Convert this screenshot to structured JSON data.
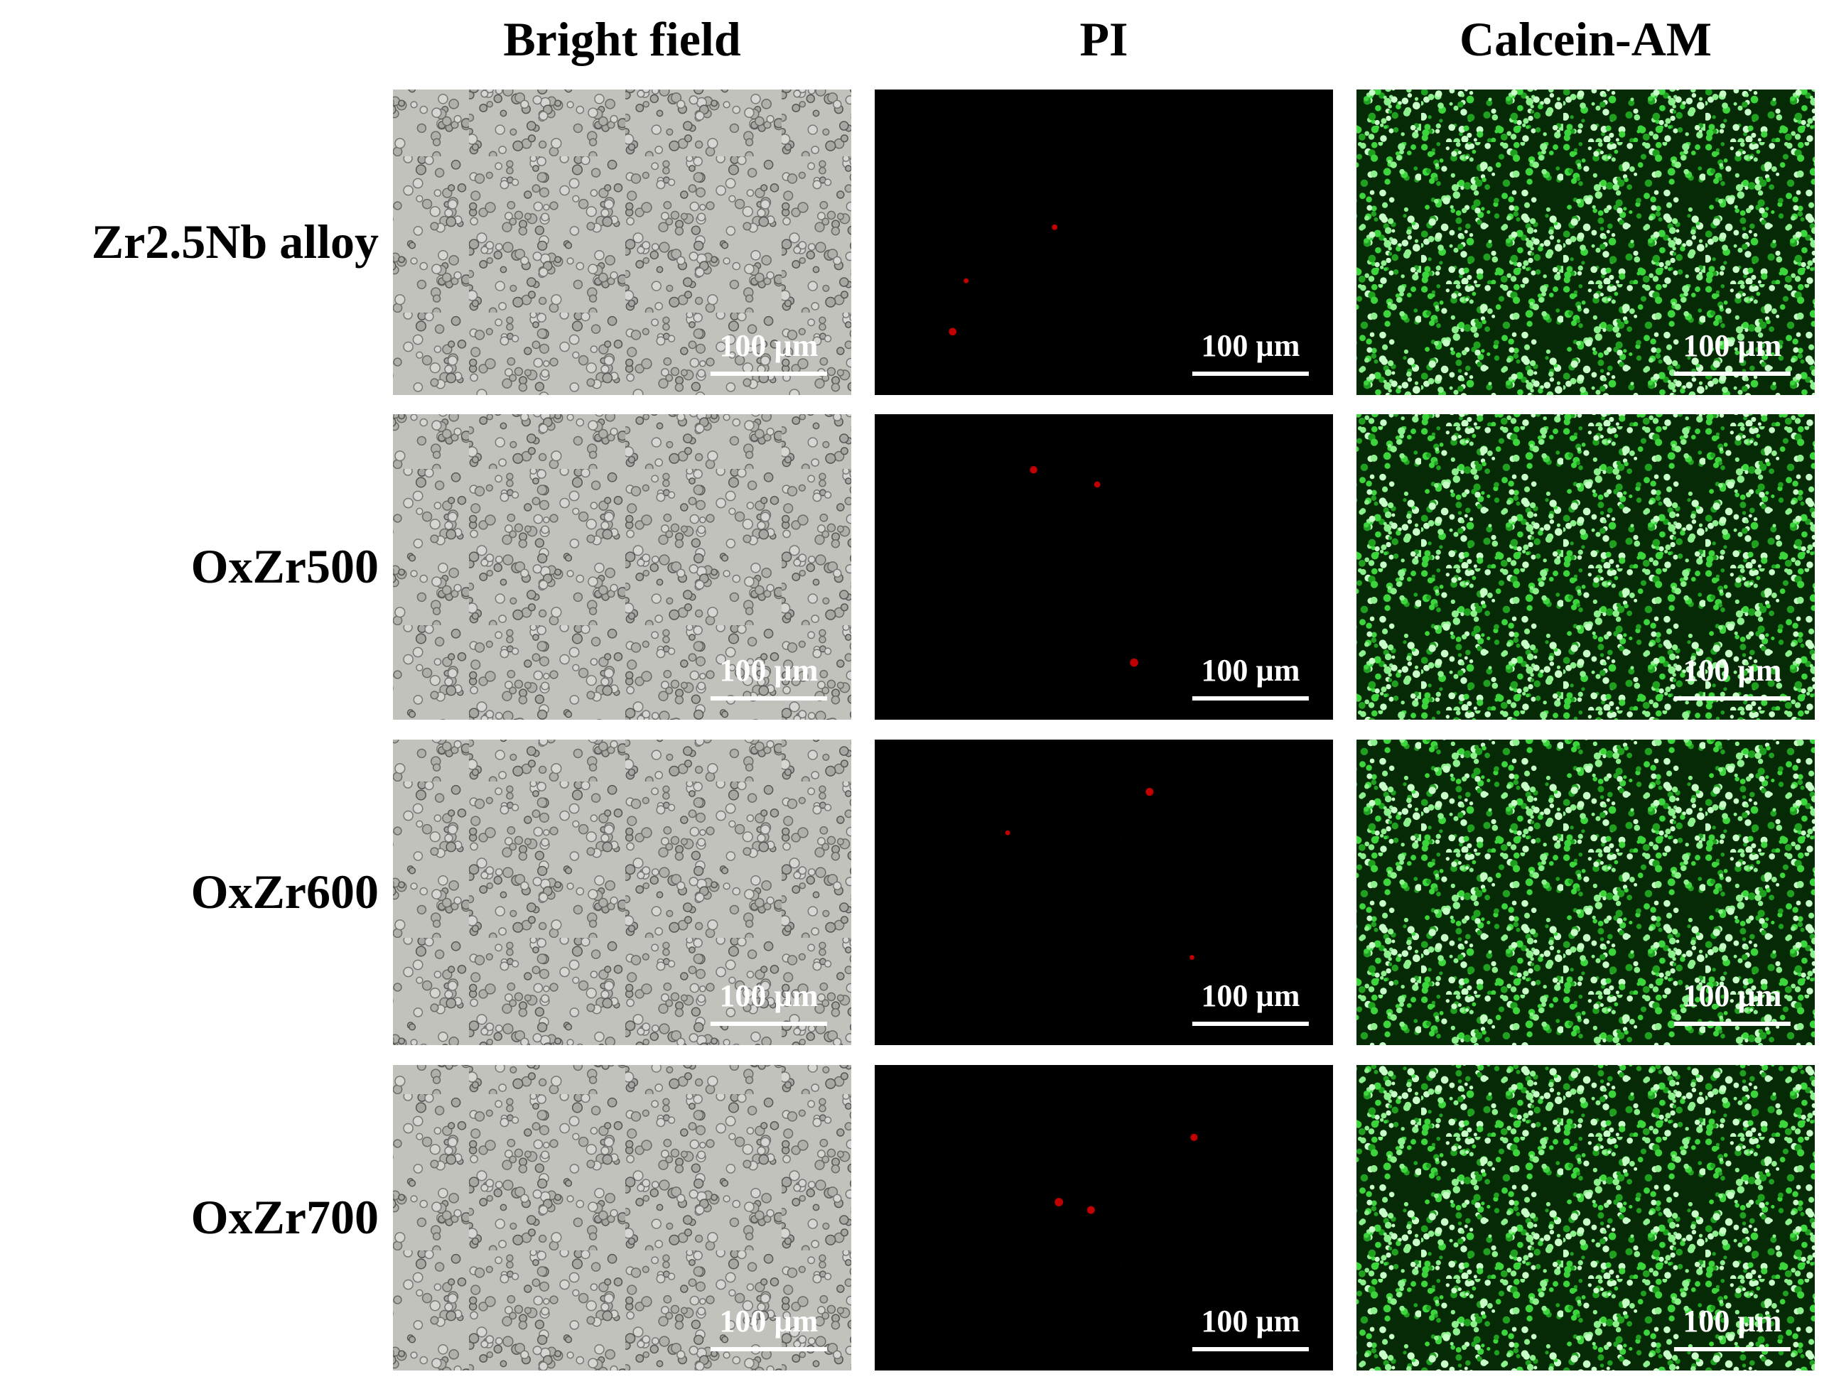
{
  "columns": [
    "Bright field",
    "PI",
    "Calcein-AM"
  ],
  "rows": [
    {
      "label": "Zr2.5Nb alloy",
      "scale_bars": [
        "100 µm",
        "100 µm",
        "100 µm"
      ]
    },
    {
      "label": "OxZr500",
      "scale_bars": [
        "100 µm",
        "100 µm",
        "100 µm"
      ]
    },
    {
      "label": "OxZr600",
      "scale_bars": [
        "100 µm",
        "100 µm",
        "100 µm"
      ]
    },
    {
      "label": "OxZr700",
      "scale_bars": [
        "100 µm",
        "100 µm",
        "100 µm"
      ]
    }
  ]
}
